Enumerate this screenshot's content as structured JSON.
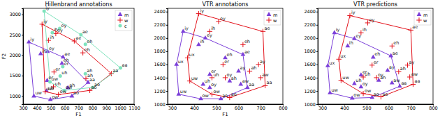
{
  "chart_data": [
    {
      "type": "scatter",
      "title": "Hillenbrand annotations",
      "x_label": "F1",
      "y_label": "F2",
      "xlim": [
        300,
        1100
      ],
      "ylim": [
        800,
        3150
      ],
      "xticks": [
        300,
        400,
        500,
        600,
        700,
        800,
        900,
        1000,
        1100
      ],
      "yticks": [
        1000,
        1500,
        2000,
        2500,
        3000
      ],
      "legend": "upper right",
      "series": [
        {
          "name": "m",
          "color": "#7b3fd9",
          "marker": "triangle",
          "line_style": "solid",
          "labels": [
            "iy",
            "ih",
            "ey",
            "eh",
            "ae",
            "ah",
            "aa",
            "ao",
            "ow",
            "uh",
            "uw",
            "er"
          ],
          "x": [
            342,
            427,
            476,
            580,
            588,
            623,
            768,
            652,
            497,
            469,
            378,
            474
          ],
          "values": [
            2322,
            2034,
            2089,
            1799,
            1952,
            1200,
            1333,
            997,
            910,
            1122,
            997,
            1379
          ]
        },
        {
          "name": "w",
          "color": "#e3121b",
          "marker": "plus",
          "line_style": "solid",
          "labels": [
            "iy",
            "ih",
            "ey",
            "eh",
            "ae",
            "ah",
            "aa",
            "ao",
            "ow",
            "uh",
            "uw",
            "er"
          ],
          "x": [
            437,
            483,
            536,
            731,
            669,
            753,
            936,
            781,
            555,
            519,
            459,
            523
          ],
          "values": [
            2761,
            2365,
            2530,
            2058,
            2349,
            1426,
            1551,
            1136,
            1035,
            1225,
            1105,
            1588
          ]
        },
        {
          "name": "c",
          "color": "#7fe3bd",
          "marker": "circle",
          "line_style": "solid",
          "labels": [
            "iy",
            "ih",
            "ey",
            "eh",
            "ae",
            "ah",
            "aa",
            "ao",
            "ow",
            "uh",
            "uw",
            "er"
          ],
          "x": [
            452,
            511,
            564,
            749,
            717,
            749,
            1002,
            803,
            597,
            568,
            494,
            586
          ],
          "values": [
            3081,
            2552,
            2656,
            2267,
            2501,
            1546,
            1688,
            1210,
            1137,
            1490,
            1345,
            1719
          ]
        }
      ]
    },
    {
      "type": "scatter",
      "title": "VTR annotations",
      "x_label": "F1",
      "xlim": [
        280,
        800
      ],
      "ylim": [
        1000,
        2450
      ],
      "xticks": [
        300,
        400,
        500,
        600,
        700,
        800
      ],
      "yticks": [
        1000,
        1200,
        1400,
        1600,
        1800,
        2000,
        2200,
        2400
      ],
      "legend": "upper right",
      "series": [
        {
          "name": "m",
          "color": "#7b3fd9",
          "marker": "triangle",
          "line_style": "solid",
          "labels": [
            "iy",
            "ih",
            "ey",
            "eh",
            "ae",
            "aa",
            "ah",
            "ao",
            "ow",
            "uh",
            "uw",
            "ux",
            "er",
            "ay",
            "aw",
            "oy"
          ],
          "x": [
            350,
            420,
            450,
            540,
            620,
            640,
            560,
            520,
            430,
            440,
            330,
            320,
            470,
            600,
            610,
            470
          ],
          "values": [
            2100,
            1900,
            2000,
            1700,
            1750,
            1250,
            1350,
            1080,
            1080,
            1300,
            1150,
            1600,
            1450,
            1500,
            1300,
            1250
          ]
        },
        {
          "name": "w",
          "color": "#e3121b",
          "marker": "plus",
          "line_style": "solid",
          "labels": [
            "iy",
            "ih",
            "ey",
            "eh",
            "ae",
            "aa",
            "ah",
            "ao",
            "ow",
            "uh",
            "uw",
            "ux",
            "er",
            "ay",
            "aw",
            "oy"
          ],
          "x": [
            420,
            470,
            510,
            620,
            710,
            720,
            650,
            560,
            480,
            480,
            380,
            370,
            530,
            690,
            700,
            540
          ],
          "values": [
            2370,
            2100,
            2250,
            1900,
            2100,
            1280,
            1500,
            1100,
            1150,
            1400,
            1350,
            1700,
            1600,
            1600,
            1400,
            1400
          ]
        }
      ]
    },
    {
      "type": "scatter",
      "title": "VTR predictions",
      "xlim": [
        280,
        800
      ],
      "ylim": [
        1000,
        2450
      ],
      "xticks": [
        300,
        400,
        500,
        600,
        700,
        800
      ],
      "yticks": [
        1000,
        1200,
        1400,
        1600,
        1800,
        2000,
        2200,
        2400
      ],
      "legend": "upper right",
      "series": [
        {
          "name": "m",
          "color": "#7b3fd9",
          "marker": "triangle",
          "line_style": "solid",
          "labels": [
            "iy",
            "ih",
            "ey",
            "eh",
            "ae",
            "aa",
            "ah",
            "ao",
            "ow",
            "uh",
            "uw",
            "ux",
            "er",
            "ay",
            "aw",
            "oy"
          ],
          "x": [
            355,
            415,
            445,
            530,
            610,
            650,
            555,
            525,
            435,
            445,
            335,
            325,
            475,
            595,
            615,
            475
          ],
          "values": [
            2080,
            1880,
            1990,
            1710,
            1730,
            1270,
            1360,
            1100,
            1090,
            1310,
            1170,
            1580,
            1440,
            1510,
            1320,
            1260
          ]
        },
        {
          "name": "w",
          "color": "#e3121b",
          "marker": "plus",
          "line_style": "solid",
          "labels": [
            "iy",
            "ih",
            "ey",
            "eh",
            "ae",
            "aa",
            "ah",
            "ao",
            "ow",
            "uh",
            "uw",
            "ux",
            "er",
            "ay",
            "aw",
            "oy"
          ],
          "x": [
            425,
            475,
            505,
            615,
            700,
            710,
            645,
            565,
            485,
            485,
            385,
            375,
            525,
            685,
            695,
            545
          ],
          "values": [
            2340,
            2080,
            2230,
            1880,
            2120,
            1300,
            1490,
            1110,
            1160,
            1410,
            1360,
            1680,
            1590,
            1590,
            1410,
            1400
          ]
        }
      ]
    }
  ]
}
